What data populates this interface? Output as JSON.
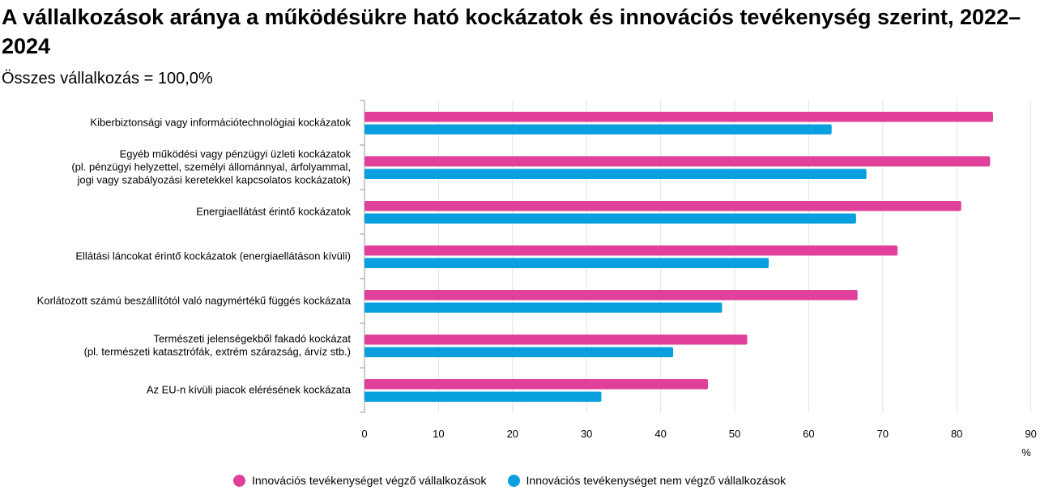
{
  "title": "A vállalkozások aránya a működésükre ható kockázatok és innovációs tevékenység szerint, 2022–2024",
  "subtitle": "Összes vállalkozás = 100,0%",
  "colors": {
    "innovative": "#e0409a",
    "non_innovative": "#0aa0e0",
    "grid": "#e3e3e3",
    "axis": "#999999"
  },
  "chart_data": {
    "type": "bar",
    "orientation": "horizontal",
    "categories": [
      [
        "Kiberbiztonsági vagy információtechnológiai kockázatok"
      ],
      [
        "Egyéb működési vagy pénzügyi üzleti kockázatok",
        "(pl. pénzügyi helyzettel, személyi állománnyal, árfolyammal,",
        "jogi vagy szabályozási keretekkel kapcsolatos kockázatok)"
      ],
      [
        "Energiaellátást érintő kockázatok"
      ],
      [
        "Ellátási láncokat érintő kockázatok (energiaellátáson kívüli)"
      ],
      [
        "Korlátozott számú beszállítótól való nagymértékű függés kockázata"
      ],
      [
        "Természeti jelenségekből fakadó kockázat",
        "(pl. természeti katasztrófák, extrém szárazság, árvíz stb.)"
      ],
      [
        "Az EU-n kívüli piacok elérésének kockázata"
      ]
    ],
    "series": [
      {
        "name": "Innovációs tevékenységet végző vállalkozások",
        "values": [
          84.9,
          84.5,
          80.6,
          72.0,
          66.6,
          51.7,
          46.4
        ]
      },
      {
        "name": "Innovációs tevékenységet nem végző vállalkozások",
        "values": [
          63.1,
          67.8,
          66.4,
          54.6,
          48.3,
          41.7,
          32.0
        ]
      }
    ],
    "xlim": [
      0,
      90
    ],
    "xticks": [
      "0",
      "10",
      "20",
      "30",
      "40",
      "50",
      "60",
      "70",
      "80",
      "90"
    ],
    "xlabel": "%",
    "grid": true,
    "legend": "bottom"
  }
}
